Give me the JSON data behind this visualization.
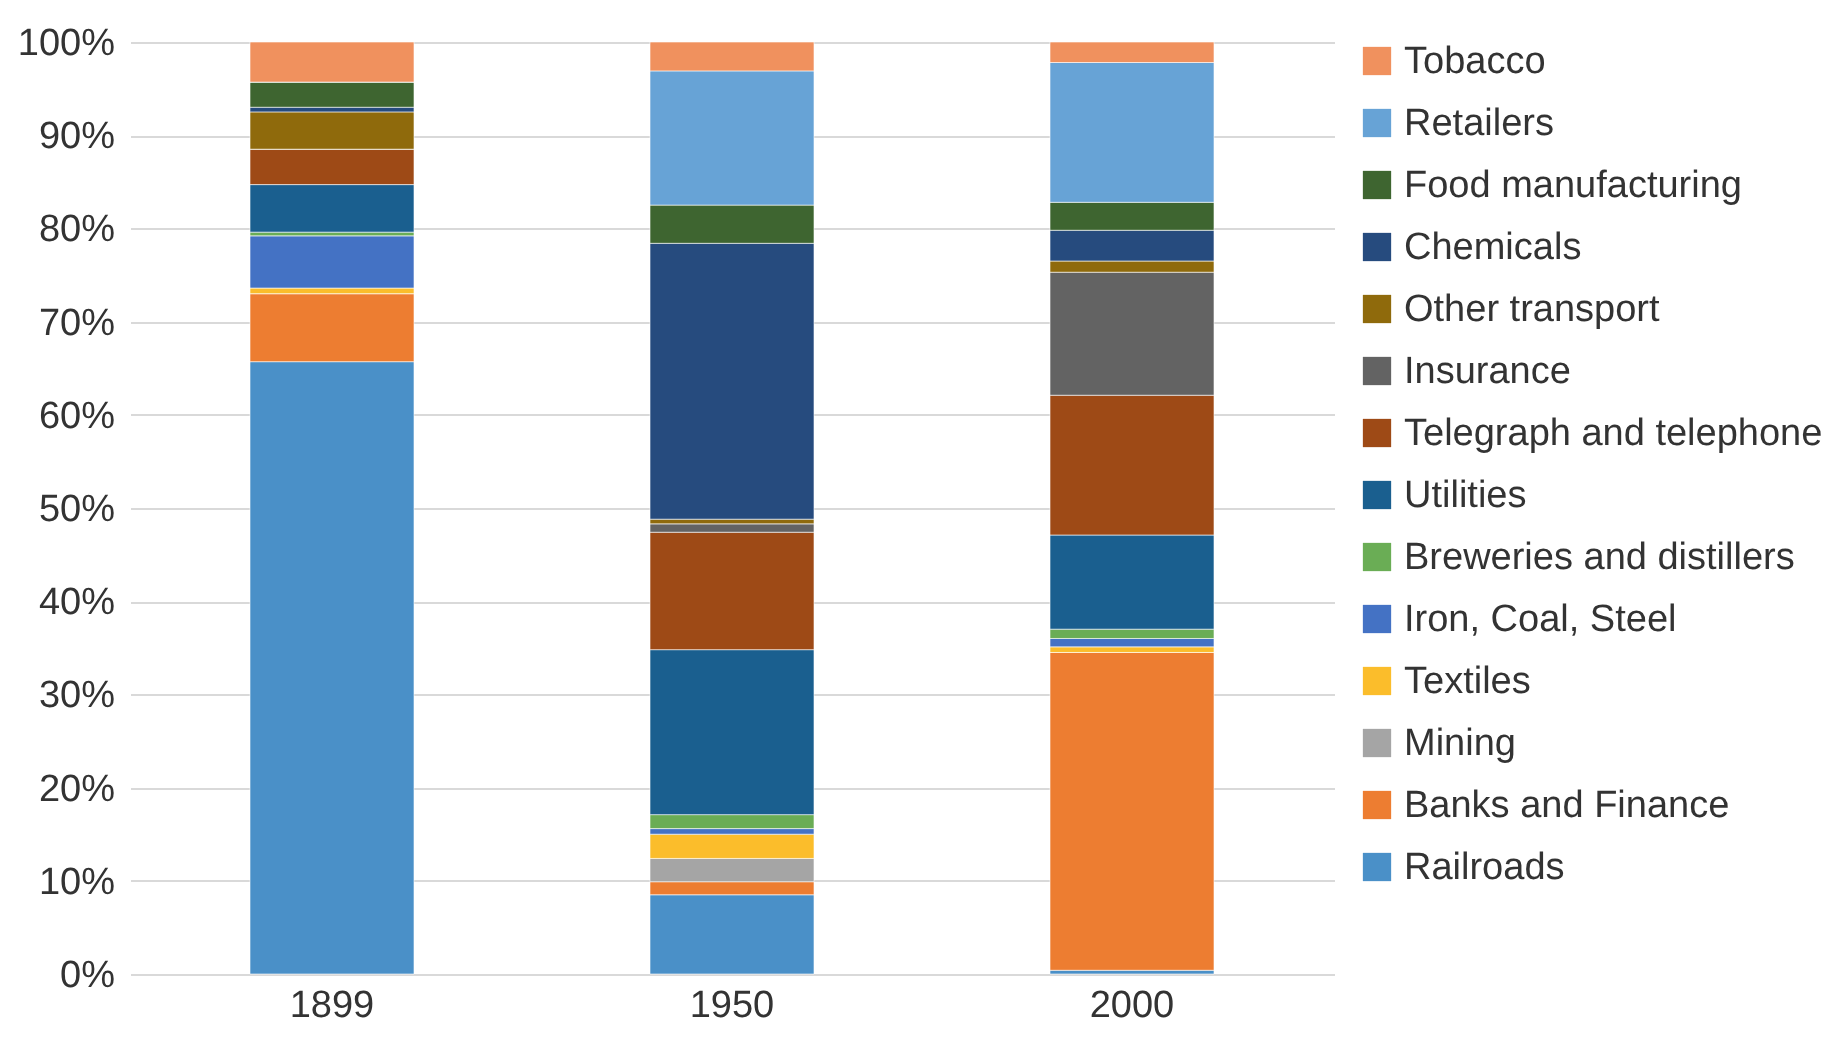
{
  "chart_data": {
    "type": "bar",
    "stacked": true,
    "categories": [
      "1899",
      "1950",
      "2000"
    ],
    "series": [
      {
        "name": "Railroads",
        "color": "#4a90c8",
        "values": [
          65.7,
          8.5,
          0.4
        ]
      },
      {
        "name": "Banks and Finance",
        "color": "#ed7d31",
        "values": [
          7.3,
          1.4,
          34.1
        ]
      },
      {
        "name": "Mining",
        "color": "#a5a5a5",
        "values": [
          0,
          2.5,
          0
        ]
      },
      {
        "name": "Textiles",
        "color": "#fbbd2b",
        "values": [
          0.6,
          2.6,
          0.6
        ]
      },
      {
        "name": "Iron, Coal, Steel",
        "color": "#4472c4",
        "values": [
          5.6,
          0.6,
          0.9
        ]
      },
      {
        "name": "Breweries and distillers",
        "color": "#6aad55",
        "values": [
          0.4,
          1.5,
          1.0
        ]
      },
      {
        "name": "Utilities",
        "color": "#1a5f8f",
        "values": [
          5.1,
          17.7,
          10.1
        ]
      },
      {
        "name": "Telegraph and telephone",
        "color": "#9e4a16",
        "values": [
          3.8,
          12.6,
          15.0
        ]
      },
      {
        "name": "Insurance",
        "color": "#636363",
        "values": [
          0,
          0.9,
          13.2
        ]
      },
      {
        "name": "Other transport",
        "color": "#8f6a0c",
        "values": [
          4.0,
          0.5,
          1.2
        ]
      },
      {
        "name": "Chemicals",
        "color": "#264b7e",
        "values": [
          0.5,
          29.6,
          3.3
        ]
      },
      {
        "name": "Food manufacturing",
        "color": "#3e6530",
        "values": [
          2.7,
          4.1,
          3.0
        ]
      },
      {
        "name": "Retailers",
        "color": "#67a3d6",
        "values": [
          0,
          14.4,
          15.0
        ]
      },
      {
        "name": "Tobacco",
        "color": "#f0915e",
        "values": [
          4.3,
          3.1,
          2.2
        ]
      }
    ],
    "ylim": [
      0,
      100
    ],
    "yticks": [
      {
        "value": 0,
        "label": "0%"
      },
      {
        "value": 10,
        "label": "10%"
      },
      {
        "value": 20,
        "label": "20%"
      },
      {
        "value": 30,
        "label": "30%"
      },
      {
        "value": 40,
        "label": "40%"
      },
      {
        "value": 50,
        "label": "50%"
      },
      {
        "value": 60,
        "label": "60%"
      },
      {
        "value": 70,
        "label": "70%"
      },
      {
        "value": 80,
        "label": "80%"
      },
      {
        "value": 90,
        "label": "90%"
      },
      {
        "value": 100,
        "label": "100%"
      }
    ],
    "grid": "y",
    "legend": "right"
  }
}
